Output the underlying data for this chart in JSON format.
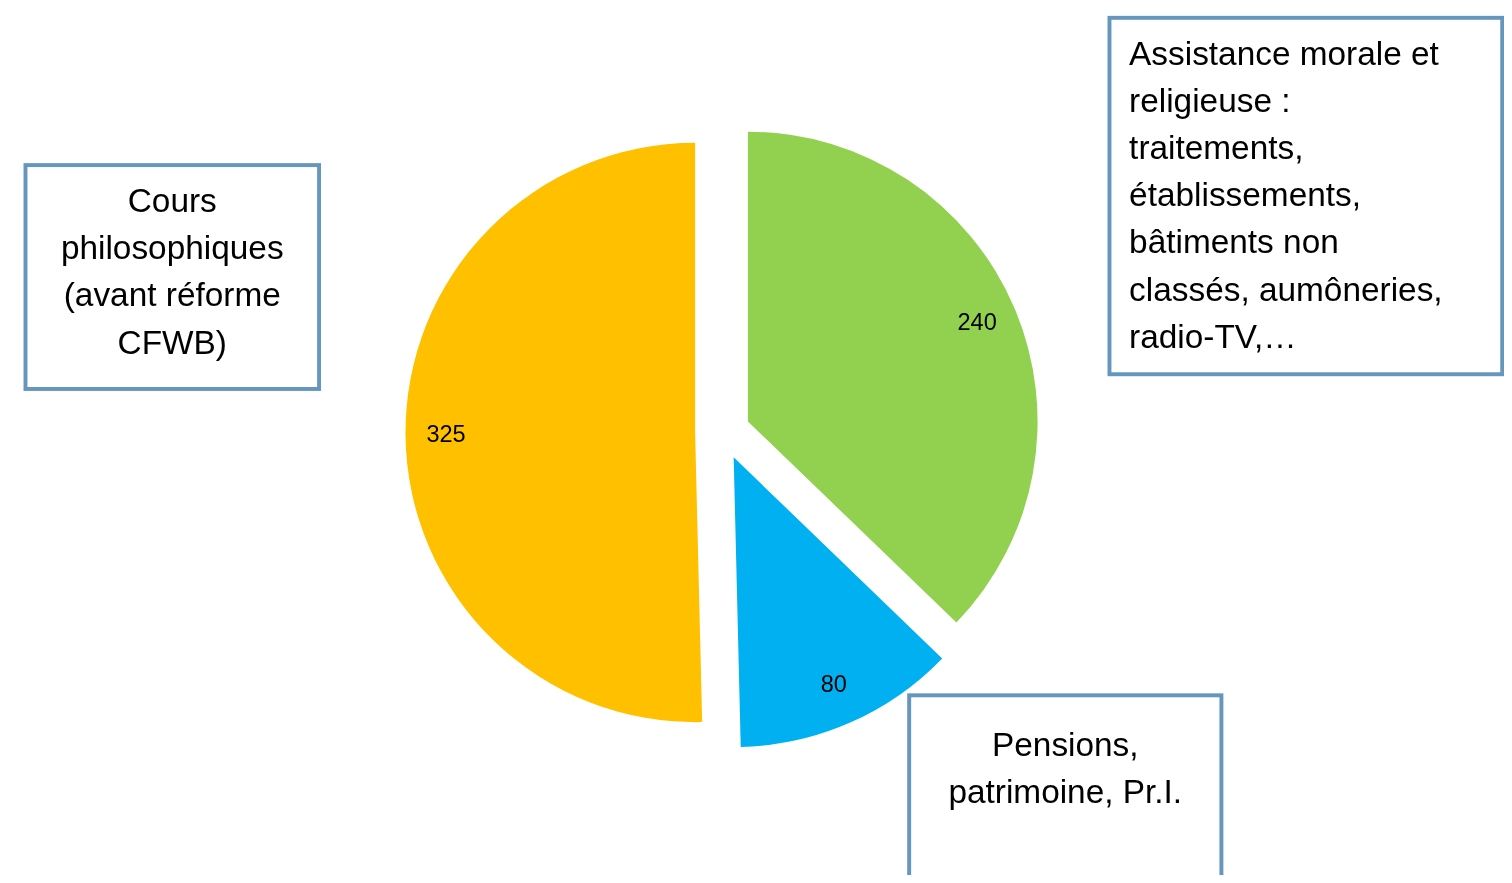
{
  "chart_data": {
    "type": "pie",
    "categories": [
      "Assistance morale et religieuse : traitements, établissements, bâtiments non classés, aumôneries, radio-TV,…",
      "Pensions, patrimoine, Pr.I.",
      "Cours philosophiques (avant réforme CFWB)"
    ],
    "values": [
      240,
      80,
      325
    ],
    "colors": [
      "#92d050",
      "#00b0f0",
      "#ffc000"
    ],
    "data_labels": true,
    "legend": false
  }
}
